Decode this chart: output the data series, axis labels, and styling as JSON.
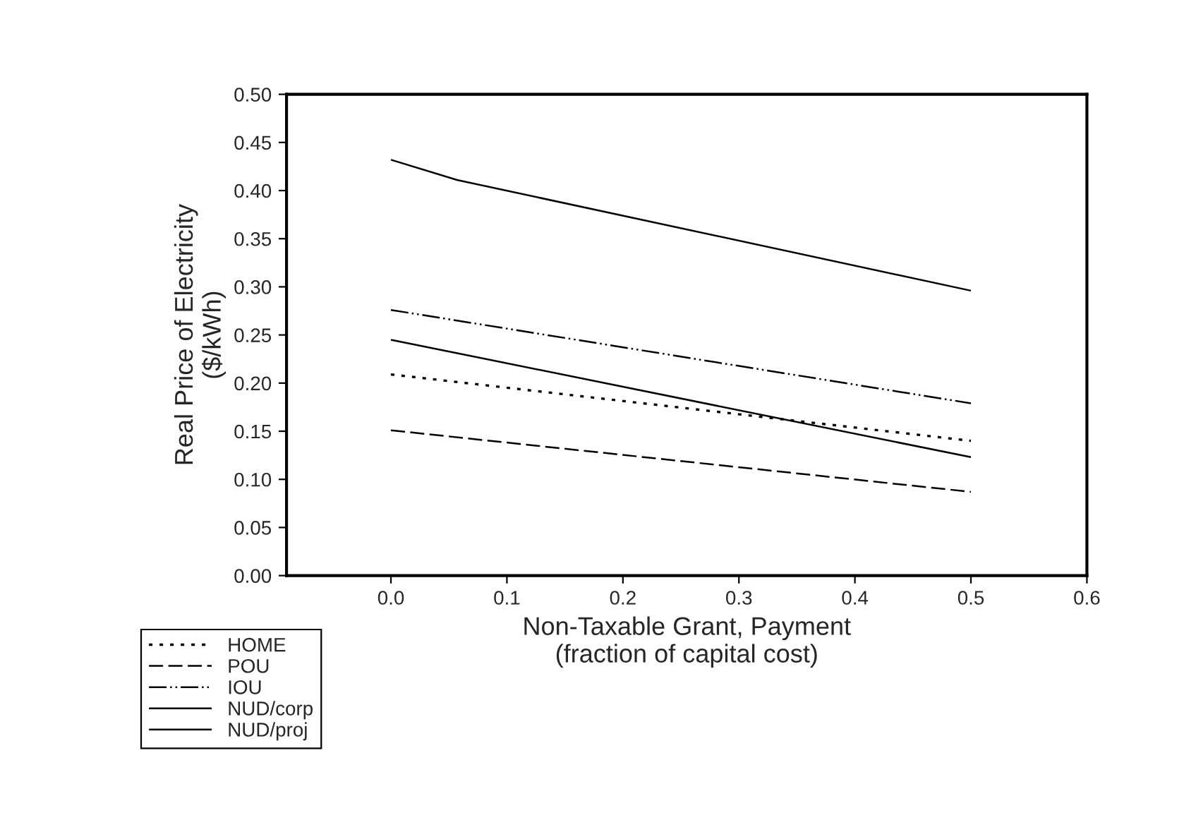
{
  "chart_data": {
    "type": "line",
    "xlabel": "Non-Taxable Grant, Payment\n(fraction of capital cost)",
    "ylabel": "Real Price of Electricity\n($/kWh)",
    "xlim": [
      -0.09,
      0.6
    ],
    "xticks": [
      {
        "value": 0,
        "label": "0.0"
      },
      0.1,
      0.2,
      0.3,
      0.4,
      0.5,
      0.6
    ],
    "ylim": [
      0,
      0.5
    ],
    "yticks": [
      {
        "value": 0,
        "label": "0.00"
      },
      {
        "value": 0.05,
        "label": "0.05"
      },
      {
        "value": 0.1,
        "label": "0.10"
      },
      {
        "value": 0.15,
        "label": "0.15"
      },
      {
        "value": 0.2,
        "label": "0.20"
      },
      {
        "value": 0.25,
        "label": "0.25"
      },
      {
        "value": 0.3,
        "label": "0.30"
      },
      {
        "value": 0.35,
        "label": "0.35"
      },
      {
        "value": 0.4,
        "label": "0.40"
      },
      {
        "value": 0.45,
        "label": "0.45"
      },
      {
        "value": 0.5,
        "label": "0.50"
      }
    ],
    "grid": false,
    "legend": "bottom left",
    "marker": "none",
    "series": [
      {
        "name": "HOME",
        "color": "#000000",
        "line_style": "dotted",
        "x": [
          0,
          0.5
        ],
        "values": [
          0.209,
          0.14
        ]
      },
      {
        "name": "POU",
        "color": "#000000",
        "line_style": "dashed",
        "x": [
          0,
          0.5
        ],
        "values": [
          0.151,
          0.087
        ]
      },
      {
        "name": "IOU",
        "color": "#000000",
        "line_style": "dashdotdot",
        "x": [
          0,
          0.5
        ],
        "values": [
          0.276,
          0.179
        ]
      },
      {
        "name": "NUD/corp",
        "color": "#000000",
        "line_style": "solid",
        "x": [
          0,
          0.5
        ],
        "values": [
          0.245,
          0.123
        ]
      },
      {
        "name": "NUD/proj",
        "color": "#000000",
        "line_style": "solid",
        "x": [
          0,
          0.057,
          0.5
        ],
        "values": [
          0.432,
          0.411,
          0.296
        ]
      }
    ]
  }
}
